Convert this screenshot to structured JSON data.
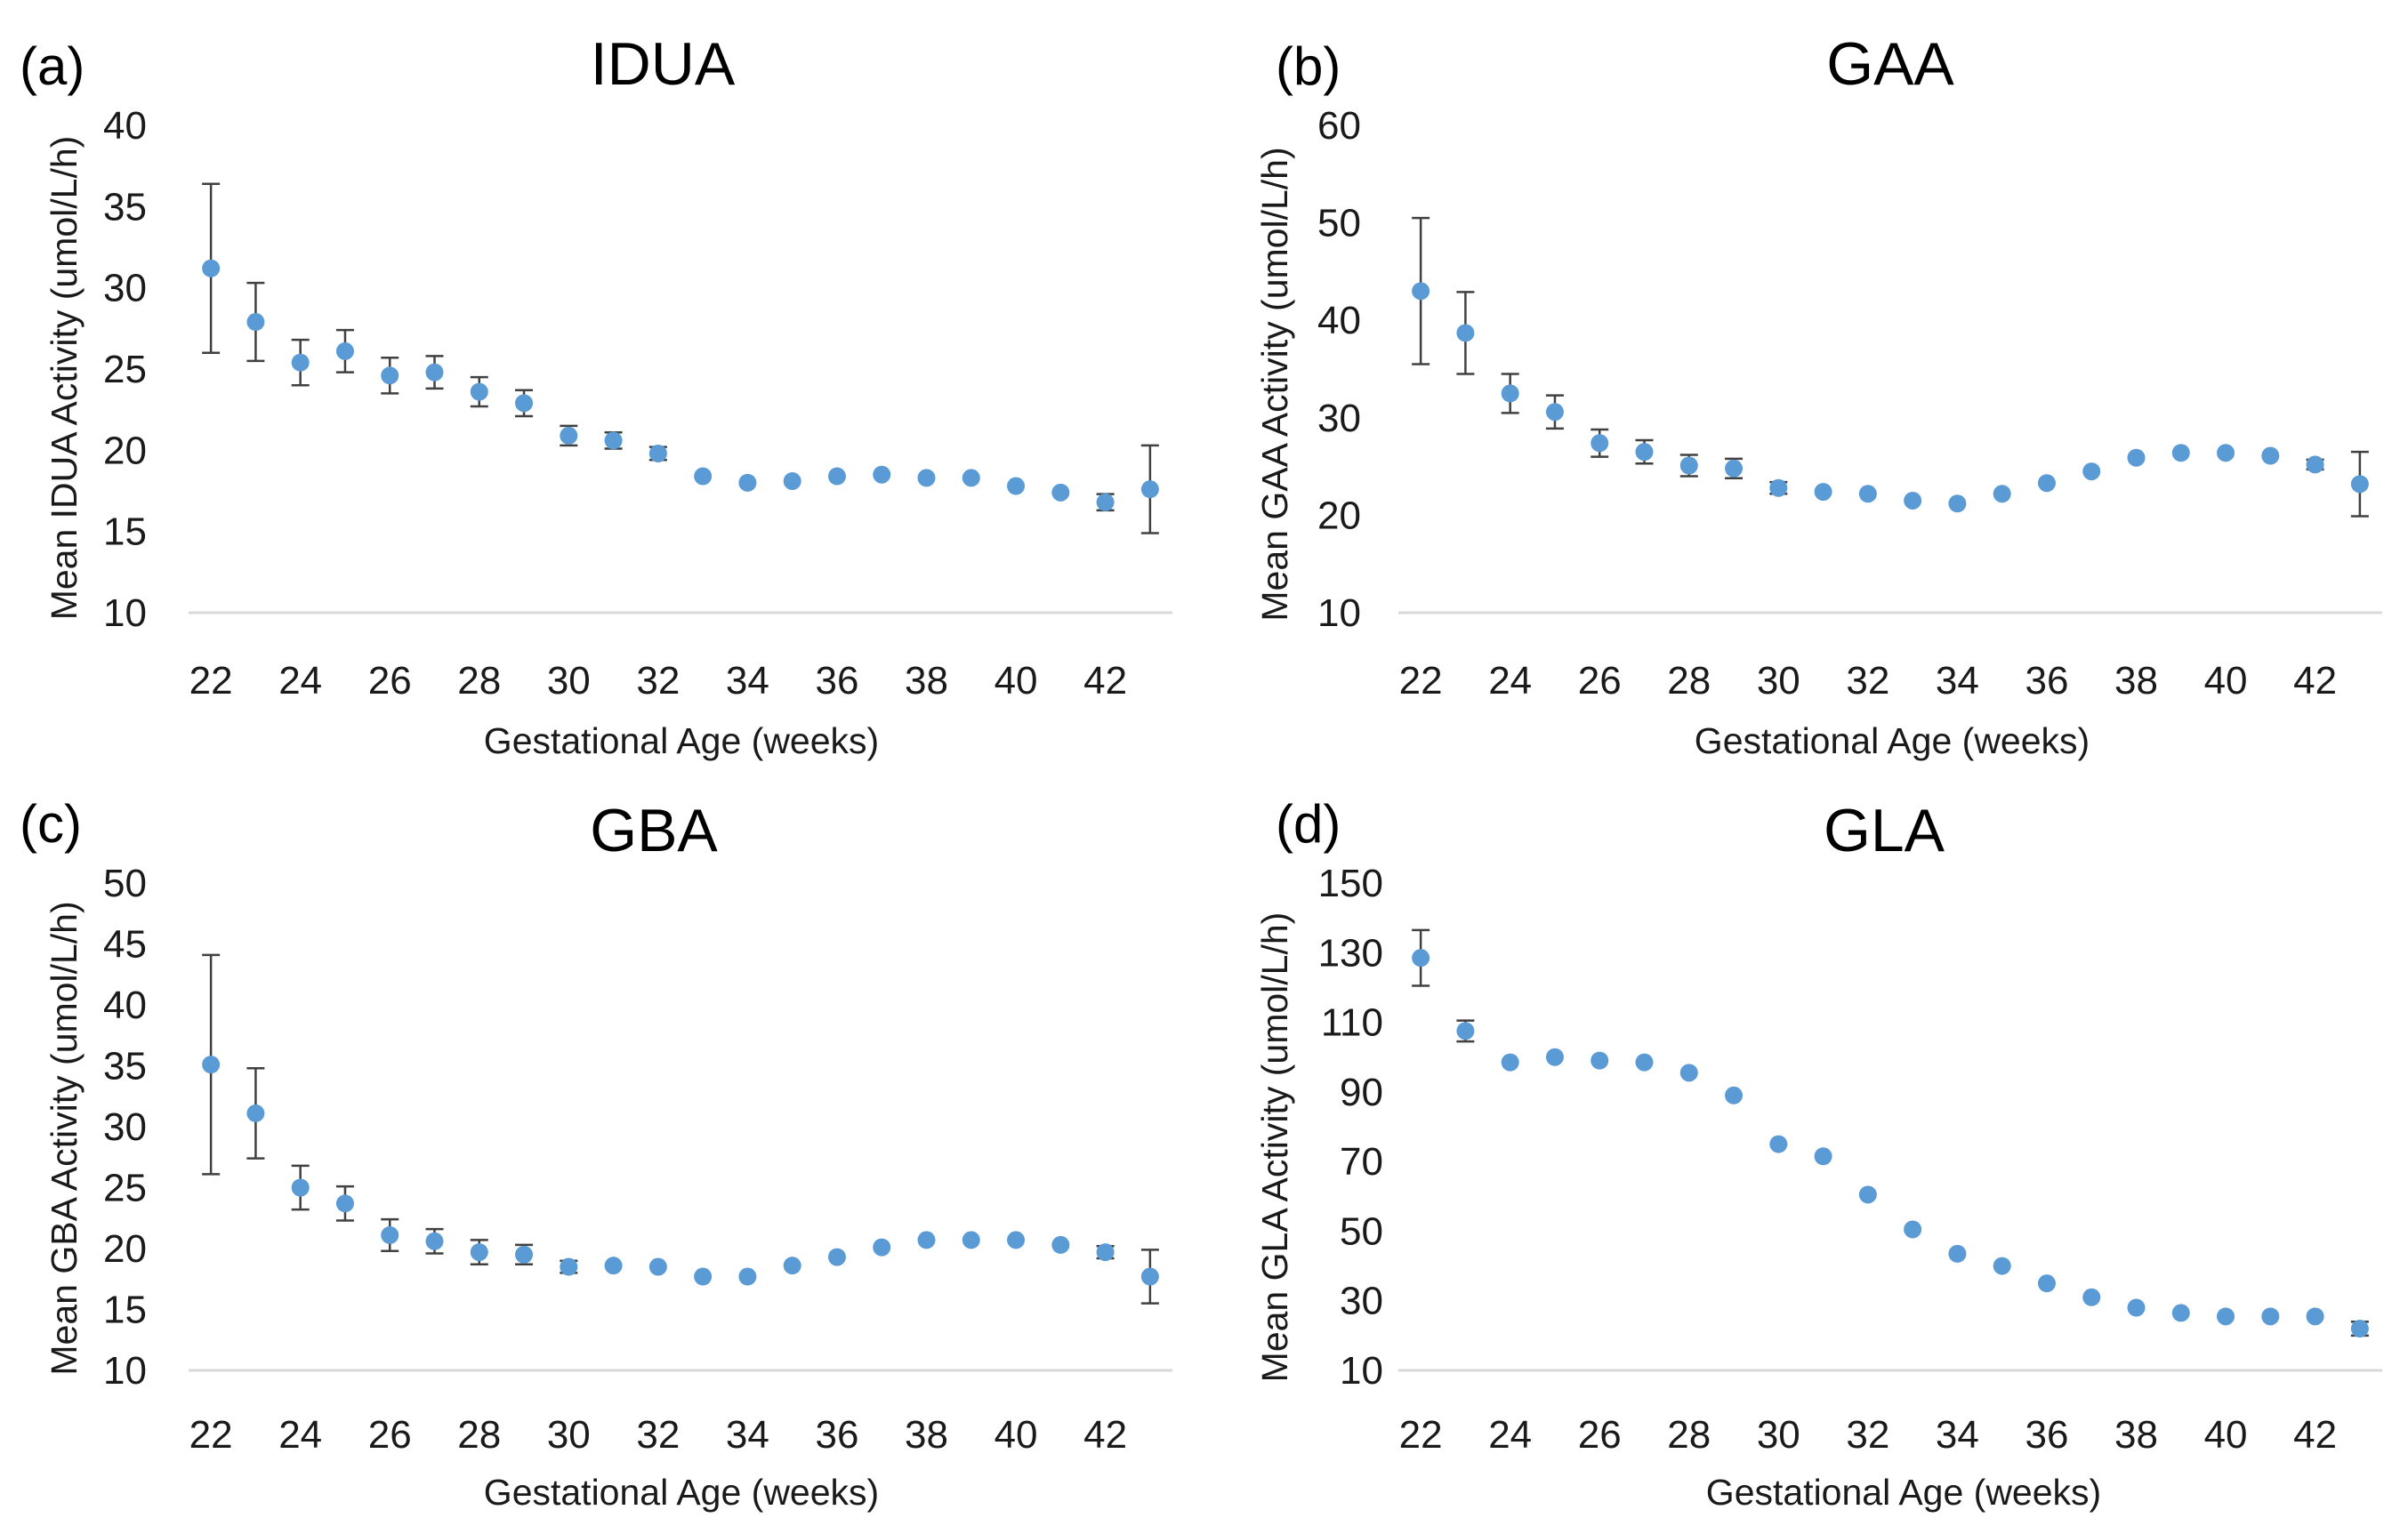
{
  "colors": {
    "marker": "#5b9bd5",
    "error_bar": "#404040",
    "axis": "#d9d9d9",
    "text": "#1a1a1a"
  },
  "chart_data": [
    {
      "type": "scatter",
      "label": "(a)",
      "title": "IDUA",
      "xlabel": "Gestational Age (weeks)",
      "ylabel": "Mean IDUA Activity (umol/L/h)",
      "xlim": [
        21.5,
        43.5
      ],
      "ylim": [
        10,
        40
      ],
      "xticks": [
        22,
        24,
        26,
        28,
        30,
        32,
        34,
        36,
        38,
        40,
        42
      ],
      "yticks": [
        10,
        15,
        20,
        25,
        30,
        35,
        40
      ],
      "grid": false,
      "x": [
        22,
        23,
        24,
        25,
        26,
        27,
        28,
        29,
        30,
        31,
        32,
        33,
        34,
        35,
        36,
        37,
        38,
        39,
        40,
        41,
        42,
        43
      ],
      "y": [
        31.2,
        27.9,
        25.4,
        26.1,
        24.6,
        24.8,
        23.6,
        22.9,
        20.9,
        20.6,
        19.8,
        18.4,
        18.0,
        18.1,
        18.4,
        18.5,
        18.3,
        18.3,
        17.8,
        17.4,
        16.8,
        17.6
      ],
      "error": [
        5.2,
        2.4,
        1.4,
        1.3,
        1.1,
        1.0,
        0.9,
        0.8,
        0.6,
        0.5,
        0.4,
        0,
        0,
        0,
        0,
        0,
        0,
        0,
        0,
        0,
        0.5,
        2.7
      ]
    },
    {
      "type": "scatter",
      "label": "(b)",
      "title": "GAA",
      "xlabel": "Gestational Age (weeks)",
      "ylabel": "Mean GAA Activity (umol/L/h)",
      "xlim": [
        21.5,
        43.5
      ],
      "ylim": [
        10,
        60
      ],
      "xticks": [
        22,
        24,
        26,
        28,
        30,
        32,
        34,
        36,
        38,
        40,
        42
      ],
      "yticks": [
        10,
        20,
        30,
        40,
        50,
        60
      ],
      "grid": false,
      "x": [
        22,
        23,
        24,
        25,
        26,
        27,
        28,
        29,
        30,
        31,
        32,
        33,
        34,
        35,
        36,
        37,
        38,
        39,
        40,
        41,
        42,
        43
      ],
      "y": [
        43.0,
        38.7,
        32.5,
        30.6,
        27.4,
        26.5,
        25.1,
        24.8,
        22.8,
        22.4,
        22.2,
        21.5,
        21.2,
        22.2,
        23.3,
        24.5,
        25.9,
        26.4,
        26.4,
        26.1,
        25.2,
        23.2
      ],
      "error": [
        7.5,
        4.2,
        2.0,
        1.7,
        1.4,
        1.2,
        1.1,
        1.0,
        0.6,
        0,
        0,
        0,
        0,
        0,
        0,
        0,
        0,
        0,
        0,
        0,
        0.5,
        3.3
      ]
    },
    {
      "type": "scatter",
      "label": "(c)",
      "title": "GBA",
      "xlabel": "Gestational Age (weeks)",
      "ylabel": "Mean GBA Activity (umol/L/h)",
      "xlim": [
        21.5,
        43.5
      ],
      "ylim": [
        10,
        50
      ],
      "xticks": [
        22,
        24,
        26,
        28,
        30,
        32,
        34,
        36,
        38,
        40,
        42
      ],
      "yticks": [
        10,
        15,
        20,
        25,
        30,
        35,
        40,
        45,
        50
      ],
      "grid": false,
      "x": [
        22,
        23,
        24,
        25,
        26,
        27,
        28,
        29,
        30,
        31,
        32,
        33,
        34,
        35,
        36,
        37,
        38,
        39,
        40,
        41,
        42,
        43
      ],
      "y": [
        35.1,
        31.1,
        25.0,
        23.7,
        21.1,
        20.6,
        19.7,
        19.5,
        18.5,
        18.6,
        18.5,
        17.7,
        17.7,
        18.6,
        19.3,
        20.1,
        20.7,
        20.7,
        20.7,
        20.3,
        19.7,
        17.7
      ],
      "error": [
        9.0,
        3.7,
        1.8,
        1.4,
        1.3,
        1.0,
        1.0,
        0.8,
        0.5,
        0,
        0,
        0,
        0,
        0,
        0,
        0,
        0,
        0,
        0,
        0,
        0.5,
        2.2
      ]
    },
    {
      "type": "scatter",
      "label": "(d)",
      "title": "GLA",
      "xlabel": "Gestational Age (weeks)",
      "ylabel": "Mean GLA Activity (umol/L/h)",
      "xlim": [
        21.5,
        43.5
      ],
      "ylim": [
        10,
        150
      ],
      "xticks": [
        22,
        24,
        26,
        28,
        30,
        32,
        34,
        36,
        38,
        40,
        42
      ],
      "yticks": [
        10,
        30,
        50,
        70,
        90,
        110,
        130,
        150
      ],
      "grid": false,
      "x": [
        22,
        23,
        24,
        25,
        26,
        27,
        28,
        29,
        30,
        31,
        32,
        33,
        34,
        35,
        36,
        37,
        38,
        39,
        40,
        41,
        42,
        43
      ],
      "y": [
        128.5,
        107.5,
        98.5,
        100.0,
        99.0,
        98.5,
        95.5,
        89.0,
        75.0,
        71.5,
        60.5,
        50.5,
        43.5,
        40.0,
        35.0,
        31.0,
        28.0,
        26.5,
        25.5,
        25.5,
        25.5,
        22.0
      ],
      "error": [
        8.0,
        3.0,
        0,
        0,
        0,
        0,
        0,
        0,
        0,
        0,
        0,
        0,
        0,
        0,
        0,
        0,
        0,
        0,
        0,
        0,
        0,
        2.0
      ]
    }
  ]
}
